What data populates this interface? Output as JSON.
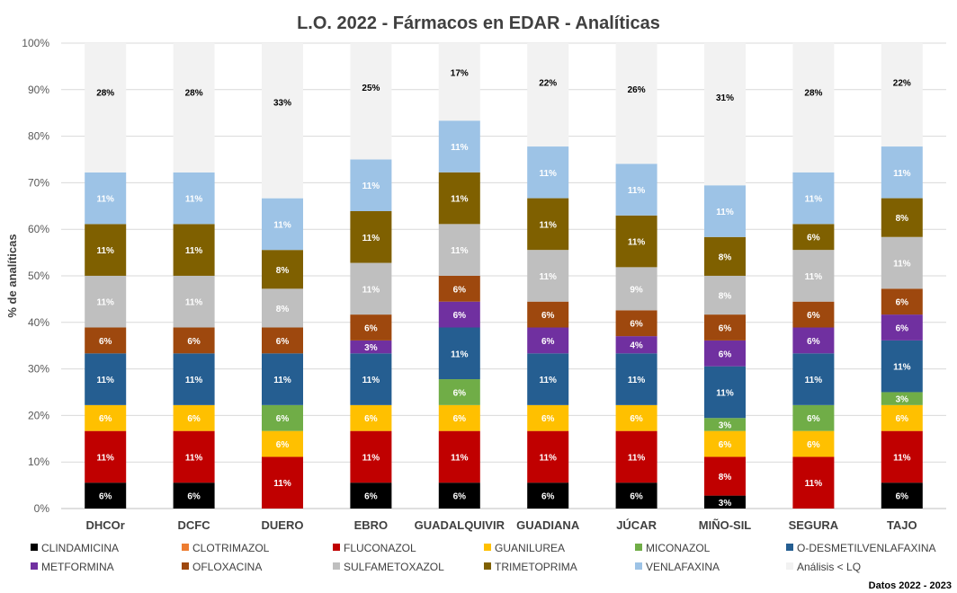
{
  "chart_data": {
    "type": "bar",
    "stacked": true,
    "title": "L.O. 2022 - Fármacos en EDAR - Analíticas",
    "ylabel": "% de analíticas",
    "xlabel": "",
    "ylim": [
      0,
      100
    ],
    "yticks": [
      "0%",
      "10%",
      "20%",
      "30%",
      "40%",
      "50%",
      "60%",
      "70%",
      "80%",
      "90%",
      "100%"
    ],
    "legend_position": "bottom",
    "footnote": "Datos 2022 - 2023",
    "categories": [
      "DHCOr",
      "DCFC",
      "DUERO",
      "EBRO",
      "GUADALQUIVIR",
      "GUADIANA",
      "JÚCAR",
      "MIÑO-SIL",
      "SEGURA",
      "TAJO"
    ],
    "series": [
      {
        "name": "CLINDAMICINA",
        "color": "#000000",
        "label_color": "#ffffff",
        "values": [
          5.56,
          5.56,
          0,
          5.56,
          5.56,
          5.56,
          5.56,
          2.78,
          0,
          5.56
        ],
        "labels": [
          "6%",
          "6%",
          "",
          "6%",
          "6%",
          "6%",
          "6%",
          "3%",
          "",
          "6%"
        ]
      },
      {
        "name": "CLOTRIMAZOL",
        "color": "#ed7d31",
        "label_color": "#ffffff",
        "values": [
          0,
          0,
          0,
          0,
          0,
          0,
          0,
          0,
          0,
          0
        ],
        "labels": [
          "",
          "",
          "",
          "",
          "",
          "",
          "",
          "",
          "",
          ""
        ]
      },
      {
        "name": "FLUCONAZOL",
        "color": "#c00000",
        "label_color": "#ffffff",
        "values": [
          11.11,
          11.11,
          11.11,
          11.11,
          11.11,
          11.11,
          11.11,
          8.33,
          11.11,
          11.11
        ],
        "labels": [
          "11%",
          "11%",
          "11%",
          "11%",
          "11%",
          "11%",
          "11%",
          "8%",
          "11%",
          "11%"
        ]
      },
      {
        "name": "GUANILUREA",
        "color": "#ffc000",
        "label_color": "#ffffff",
        "values": [
          5.56,
          5.56,
          5.56,
          5.56,
          5.56,
          5.56,
          5.56,
          5.56,
          5.56,
          5.56
        ],
        "labels": [
          "6%",
          "6%",
          "6%",
          "6%",
          "6%",
          "6%",
          "6%",
          "6%",
          "6%",
          "6%"
        ]
      },
      {
        "name": "MICONAZOL",
        "color": "#70ad47",
        "label_color": "#ffffff",
        "values": [
          0,
          0,
          5.56,
          0,
          5.56,
          0,
          0,
          2.78,
          5.56,
          2.78
        ],
        "labels": [
          "",
          "",
          "6%",
          "",
          "6%",
          "",
          "",
          "3%",
          "6%",
          "3%"
        ]
      },
      {
        "name": "O-DESMETILVENLAFAXINA",
        "color": "#255e91",
        "label_color": "#ffffff",
        "values": [
          11.11,
          11.11,
          11.11,
          11.11,
          11.11,
          11.11,
          11.11,
          11.11,
          11.11,
          11.11
        ],
        "labels": [
          "11%",
          "11%",
          "11%",
          "11%",
          "11%",
          "11%",
          "11%",
          "11%",
          "11%",
          "11%"
        ]
      },
      {
        "name": "METFORMINA",
        "color": "#7030a0",
        "label_color": "#ffffff",
        "values": [
          0,
          0,
          0,
          2.78,
          5.56,
          5.56,
          3.7,
          5.56,
          5.56,
          5.56
        ],
        "labels": [
          "",
          "",
          "",
          "3%",
          "6%",
          "6%",
          "4%",
          "6%",
          "6%",
          "6%"
        ]
      },
      {
        "name": "OFLOXACINA",
        "color": "#9e480e",
        "label_color": "#ffffff",
        "values": [
          5.56,
          5.56,
          5.56,
          5.56,
          5.56,
          5.56,
          5.56,
          5.56,
          5.56,
          5.56
        ],
        "labels": [
          "6%",
          "6%",
          "6%",
          "6%",
          "6%",
          "6%",
          "6%",
          "6%",
          "6%",
          "6%"
        ]
      },
      {
        "name": "SULFAMETOXAZOL",
        "color": "#bfbfbf",
        "label_color": "#ffffff",
        "values": [
          11.11,
          11.11,
          8.33,
          11.11,
          11.11,
          11.11,
          9.26,
          8.33,
          11.11,
          11.11
        ],
        "labels": [
          "11%",
          "11%",
          "8%",
          "11%",
          "11%",
          "11%",
          "9%",
          "8%",
          "11%",
          "11%"
        ]
      },
      {
        "name": "TRIMETOPRIMA",
        "color": "#7f6000",
        "label_color": "#ffffff",
        "values": [
          11.11,
          11.11,
          8.33,
          11.11,
          11.11,
          11.11,
          11.11,
          8.33,
          5.56,
          8.33
        ],
        "labels": [
          "11%",
          "11%",
          "8%",
          "11%",
          "11%",
          "11%",
          "11%",
          "8%",
          "6%",
          "8%"
        ]
      },
      {
        "name": "VENLAFAXINA",
        "color": "#9dc3e6",
        "label_color": "#ffffff",
        "values": [
          11.11,
          11.11,
          11.11,
          11.11,
          11.11,
          11.11,
          11.11,
          11.11,
          11.11,
          11.11
        ],
        "labels": [
          "11%",
          "11%",
          "11%",
          "11%",
          "11%",
          "11%",
          "11%",
          "11%",
          "11%",
          "11%"
        ]
      },
      {
        "name": "Análisis < LQ",
        "color": "#f2f2f2",
        "label_color": "#000000",
        "values": [
          27.78,
          27.78,
          33.33,
          25.0,
          16.67,
          22.22,
          25.93,
          30.56,
          27.78,
          22.22
        ],
        "labels": [
          "28%",
          "28%",
          "33%",
          "25%",
          "17%",
          "22%",
          "26%",
          "31%",
          "28%",
          "22%"
        ]
      }
    ]
  }
}
